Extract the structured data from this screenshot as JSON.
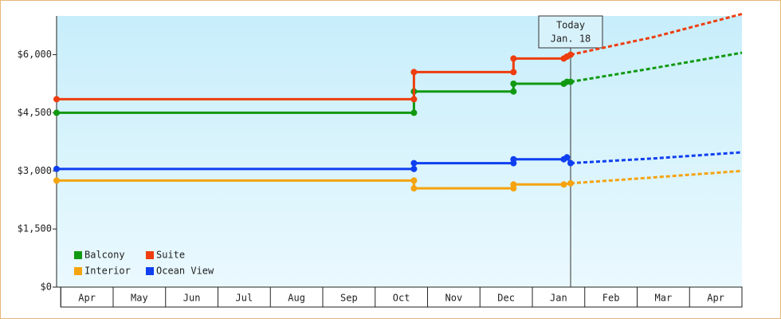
{
  "chart_data": {
    "type": "line",
    "categories": [
      "Apr",
      "May",
      "Jun",
      "Jul",
      "Aug",
      "Sep",
      "Oct",
      "Nov",
      "Dec",
      "Jan",
      "Feb",
      "Mar",
      "Apr"
    ],
    "xlim": [
      -0.08,
      13
    ],
    "ylim": [
      0,
      7000
    ],
    "yticks": [
      {
        "value": 0,
        "label": "$0"
      },
      {
        "value": 1500,
        "label": "$1,500"
      },
      {
        "value": 3000,
        "label": "$3,000"
      },
      {
        "value": 4500,
        "label": "$4,500"
      },
      {
        "value": 6000,
        "label": "$6,000"
      }
    ],
    "today": {
      "x": 9.73,
      "label": [
        "Today",
        "Jan. 18"
      ]
    },
    "series": [
      {
        "name": "Balcony",
        "color": "#119911",
        "x": [
          -0.08,
          6.74,
          6.74,
          8.64,
          8.64,
          9.6,
          9.66,
          9.73
        ],
        "values": [
          4500,
          4500,
          5050,
          5050,
          5250,
          5250,
          5300,
          5300
        ],
        "forecast": {
          "x": [
            9.73,
            11.3,
            13
          ],
          "values": [
            5300,
            5650,
            6050
          ]
        }
      },
      {
        "name": "Suite",
        "color": "#ee3d0e",
        "x": [
          -0.08,
          6.74,
          6.74,
          8.64,
          8.64,
          9.6,
          9.66,
          9.73
        ],
        "values": [
          4850,
          4850,
          5550,
          5550,
          5900,
          5900,
          5950,
          6000
        ],
        "forecast": {
          "x": [
            9.73,
            11.3,
            13
          ],
          "values": [
            6000,
            6450,
            7050
          ]
        }
      },
      {
        "name": "Interior",
        "color": "#f5a30e",
        "x": [
          -0.08,
          6.74,
          6.74,
          8.64,
          8.64,
          9.6,
          9.73
        ],
        "values": [
          2750,
          2750,
          2550,
          2550,
          2650,
          2650,
          2680
        ],
        "forecast": {
          "x": [
            9.73,
            11.3,
            13
          ],
          "values": [
            2680,
            2830,
            3000
          ]
        }
      },
      {
        "name": "Ocean View",
        "color": "#0f3ff0",
        "x": [
          -0.08,
          6.74,
          6.74,
          8.64,
          8.64,
          9.6,
          9.66,
          9.73
        ],
        "values": [
          3050,
          3050,
          3200,
          3200,
          3300,
          3300,
          3350,
          3200
        ],
        "forecast": {
          "x": [
            9.73,
            11.3,
            13
          ],
          "values": [
            3200,
            3320,
            3480
          ]
        }
      }
    ]
  }
}
